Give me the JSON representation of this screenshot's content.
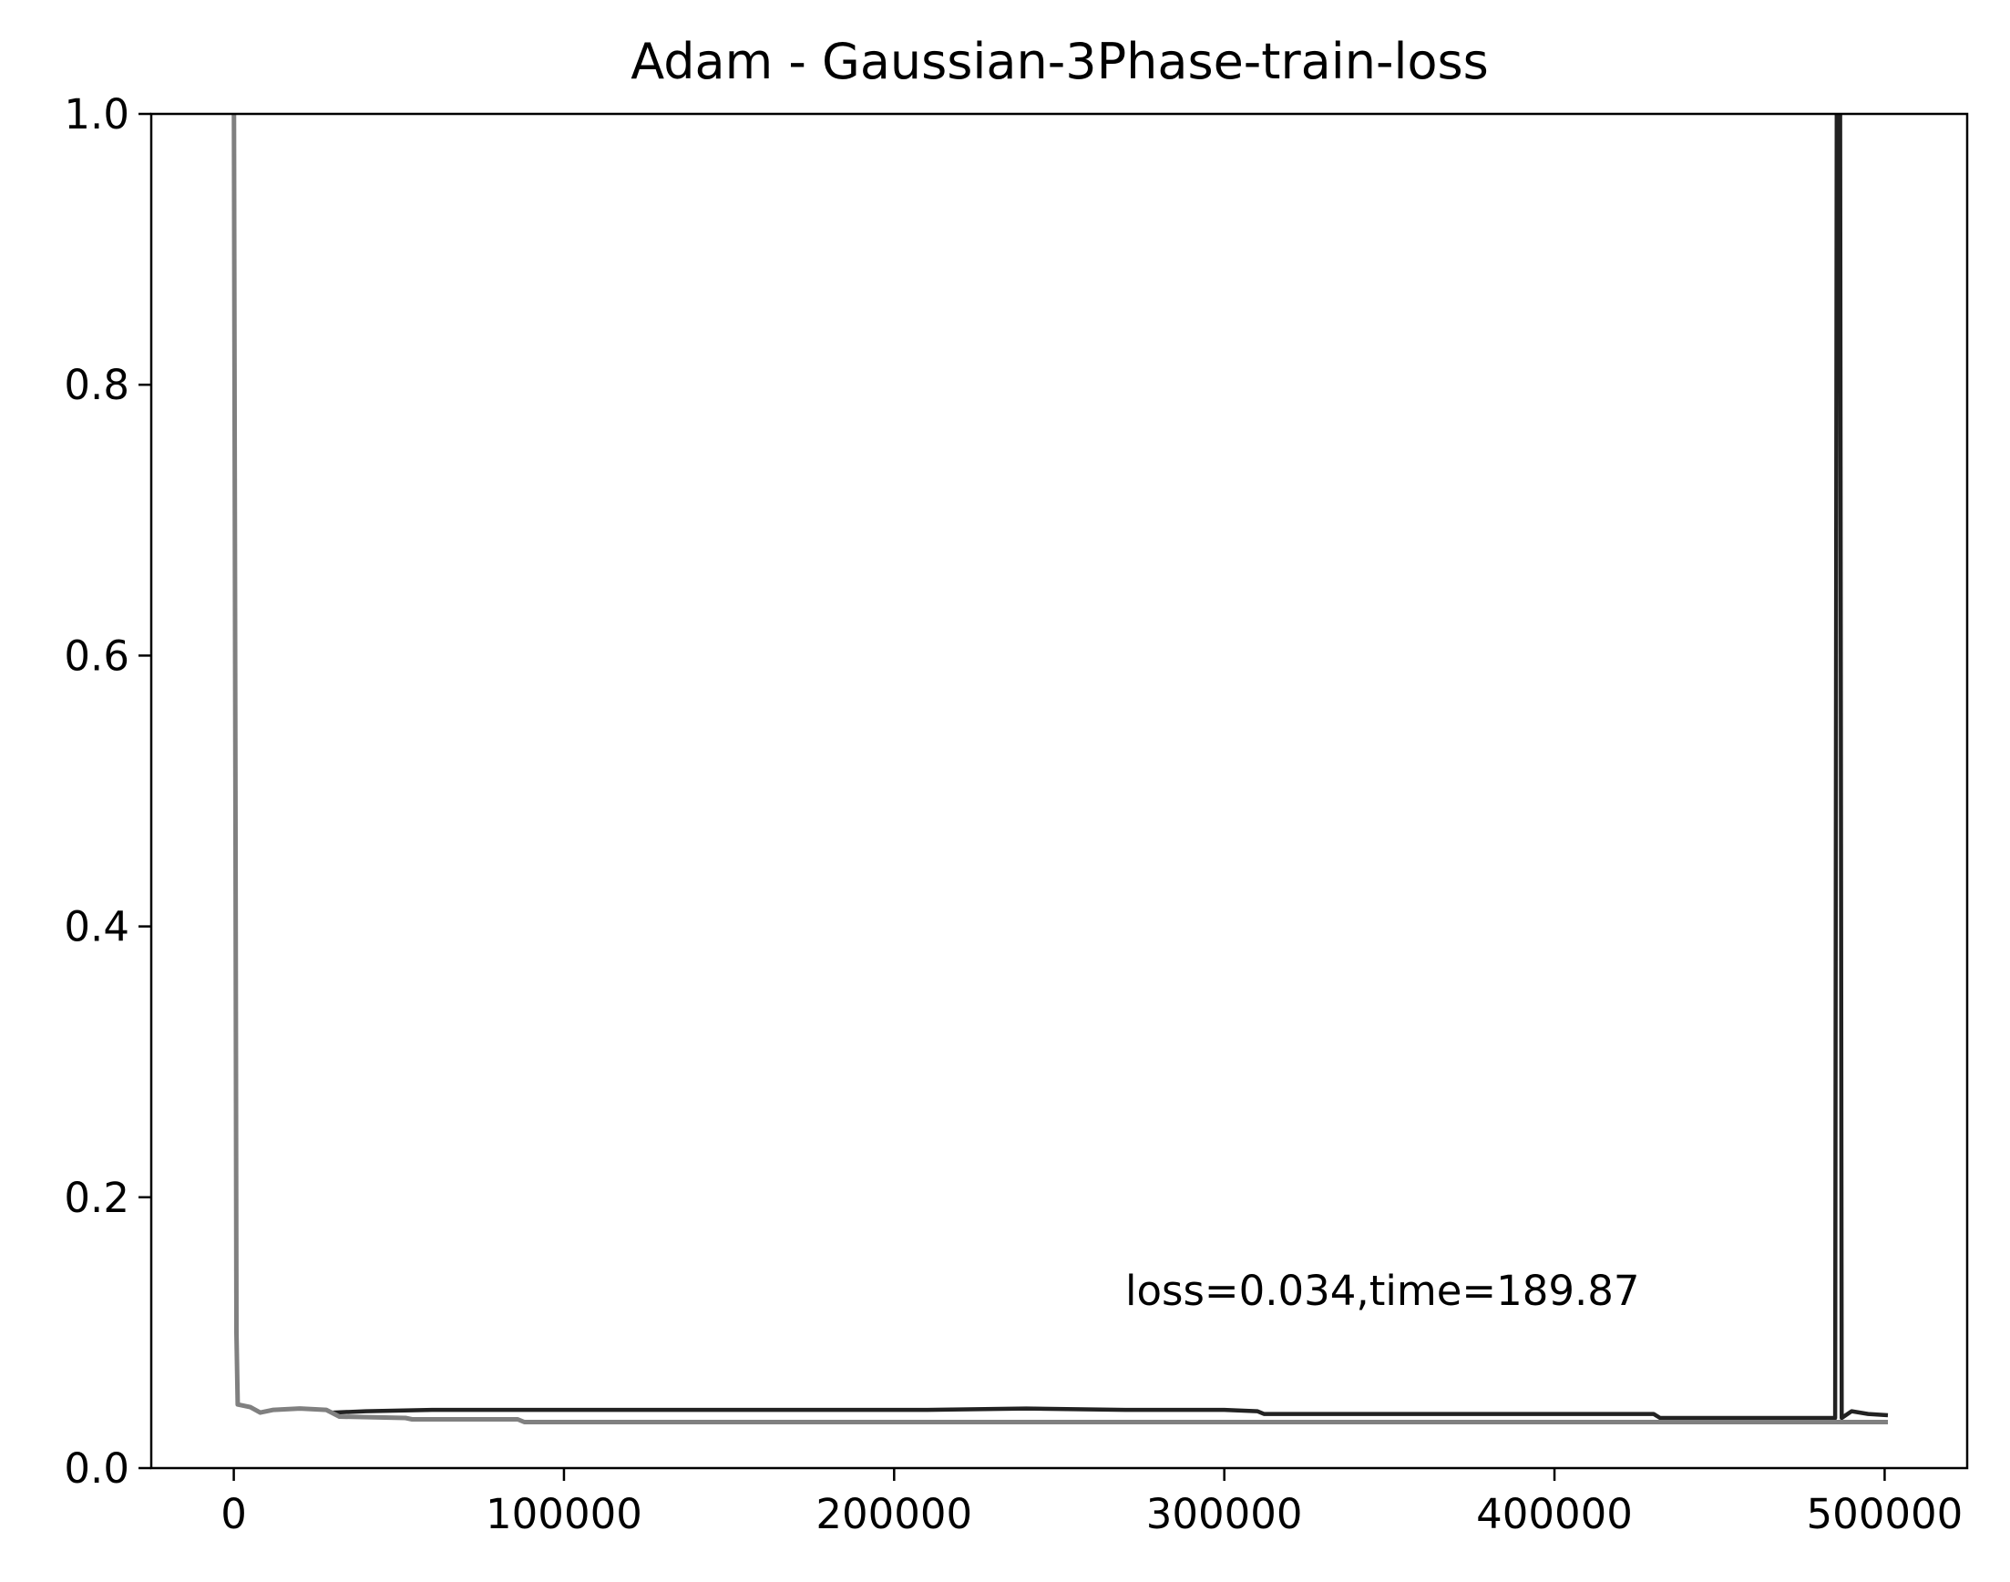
{
  "chart_data": {
    "type": "line",
    "title": "Adam - Gaussian-3Phase-train-loss",
    "xlabel": "",
    "ylabel": "",
    "xlim": [
      -25000,
      525000
    ],
    "ylim": [
      0.0,
      1.0
    ],
    "x_ticks": [
      0,
      100000,
      200000,
      300000,
      400000,
      500000
    ],
    "x_tick_labels": [
      "0",
      "100000",
      "200000",
      "300000",
      "400000",
      "500000"
    ],
    "y_ticks": [
      0.0,
      0.2,
      0.4,
      0.6,
      0.8,
      1.0
    ],
    "y_tick_labels": [
      "0.0",
      "0.2",
      "0.4",
      "0.6",
      "0.8",
      "1.0"
    ],
    "grid": false,
    "legend": "none",
    "annotation": {
      "text": "loss=0.034,time=189.87",
      "x": 270000,
      "y": 0.13
    },
    "series": [
      {
        "color": "#222222",
        "points": [
          [
            30000,
            0.041
          ],
          [
            40000,
            0.042
          ],
          [
            60000,
            0.043
          ],
          [
            90000,
            0.043
          ],
          [
            120000,
            0.043
          ],
          [
            150000,
            0.043
          ],
          [
            180000,
            0.043
          ],
          [
            210000,
            0.043
          ],
          [
            240000,
            0.044
          ],
          [
            270000,
            0.043
          ],
          [
            300000,
            0.043
          ],
          [
            310000,
            0.042
          ],
          [
            312000,
            0.04
          ],
          [
            340000,
            0.04
          ],
          [
            370000,
            0.04
          ],
          [
            400000,
            0.04
          ],
          [
            430000,
            0.04
          ],
          [
            432000,
            0.037
          ],
          [
            460000,
            0.037
          ],
          [
            485000,
            0.037
          ],
          [
            485500,
            1.05
          ],
          [
            486500,
            1.05
          ],
          [
            487000,
            0.037
          ],
          [
            490000,
            0.042
          ],
          [
            495000,
            0.04
          ],
          [
            501000,
            0.039
          ]
        ]
      },
      {
        "color": "#808080",
        "points": [
          [
            0,
            1.05
          ],
          [
            500,
            0.5
          ],
          [
            800,
            0.1
          ],
          [
            1200,
            0.047
          ],
          [
            5000,
            0.045
          ],
          [
            8000,
            0.041
          ],
          [
            12000,
            0.043
          ],
          [
            20000,
            0.044
          ],
          [
            28000,
            0.043
          ],
          [
            32000,
            0.038
          ],
          [
            52000,
            0.037
          ],
          [
            54000,
            0.036
          ],
          [
            86000,
            0.036
          ],
          [
            88000,
            0.034
          ],
          [
            150000,
            0.034
          ],
          [
            250000,
            0.034
          ],
          [
            350000,
            0.034
          ],
          [
            450000,
            0.034
          ],
          [
            501000,
            0.034
          ]
        ]
      }
    ]
  }
}
